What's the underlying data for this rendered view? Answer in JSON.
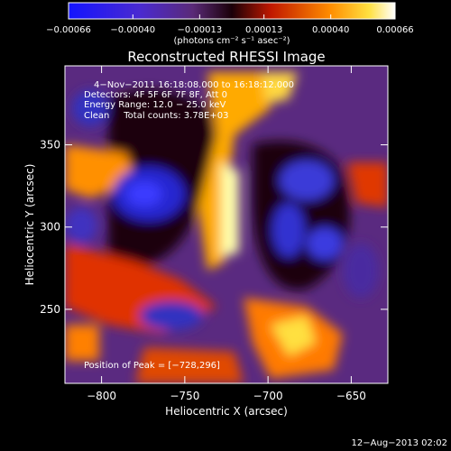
{
  "chart_data": {
    "type": "heatmap",
    "title": "Reconstructed RHESSI Image",
    "xlabel": "Heliocentric X (arcsec)",
    "ylabel": "Heliocentric Y (arcsec)",
    "xlim": [
      -822,
      -628
    ],
    "ylim": [
      205,
      398
    ],
    "x_ticks": [
      -800,
      -750,
      -700,
      -650
    ],
    "y_ticks": [
      250,
      300,
      350
    ],
    "x_tick_labels": [
      "−800",
      "−750",
      "−700",
      "−650"
    ],
    "y_tick_labels": [
      "250",
      "300",
      "350"
    ],
    "colorbar": {
      "range": [
        -0.00066,
        0.00066
      ],
      "ticks": [
        -0.00066,
        -0.0004,
        -0.00013,
        0.00013,
        0.0004,
        0.00066
      ],
      "tick_labels": [
        "−0.00066",
        "−0.00040",
        "−0.00013",
        "0.00013",
        "0.00040",
        "0.00066"
      ],
      "units_label": "(photons cm⁻² s⁻¹ asec⁻²)",
      "colors": [
        "#0000ff",
        "#6a2aa8",
        "#1a0010",
        "#c81800",
        "#ff8a00",
        "#ffffff"
      ]
    },
    "annotations": [
      "4−Nov−2011 16:18:08.000 to 16:18:12.000",
      "Detectors: 4F 5F 6F 7F 8F, Att 0",
      "Energy Range: 12.0 − 25.0 keV",
      "Clean     Total counts: 3.78E+03"
    ],
    "peak_label": "Position of Peak = [−728,296]",
    "peak": [
      -728,
      296
    ]
  },
  "footer": {
    "date": "12−Aug−2013 02:02"
  }
}
